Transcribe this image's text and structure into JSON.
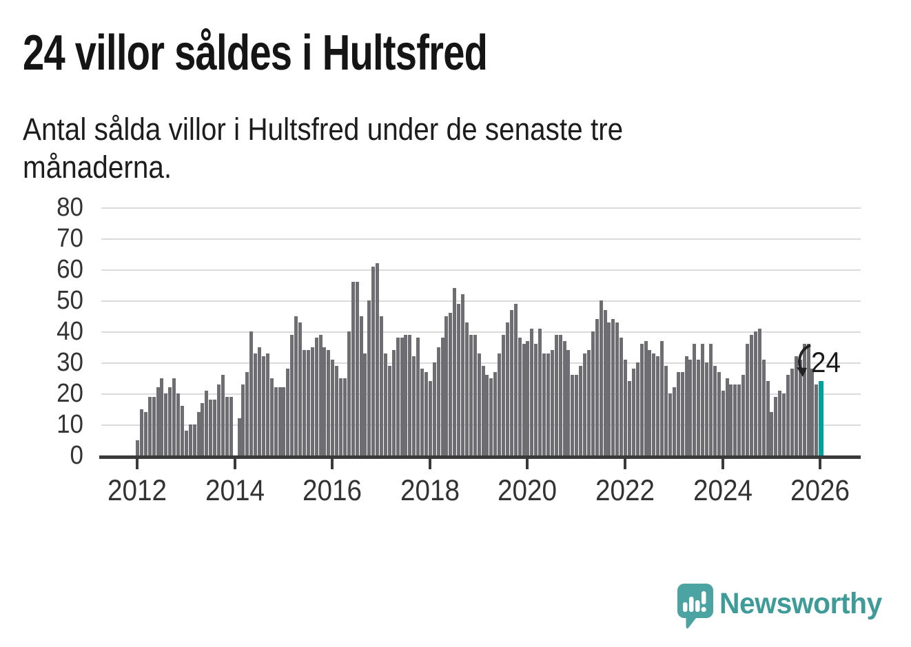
{
  "header": {
    "title": "24 villor såldes i Hultsfred",
    "subtitle_line1": "Antal sålda villor i Hultsfred under de senaste tre",
    "subtitle_line2": "månaderna."
  },
  "annotation": {
    "value_label": "24"
  },
  "footer": {
    "brand": "Newsworthy",
    "logo_icon": "newsworthy-speech-bubble-bar-chart-icon"
  },
  "colors": {
    "bar": "#6e6e72",
    "highlight": "#00a19b",
    "grid": "#dbdbdb",
    "axis": "#3a3a3a",
    "label": "#333333",
    "title": "#151515",
    "brand": "#3f9b98",
    "brand_bubble": "#4ba4a1"
  },
  "chart_data": {
    "type": "bar",
    "title": "24 villor såldes i Hultsfred",
    "subtitle": "Antal sålda villor i Hultsfred under de senaste tre månaderna.",
    "xlabel": "",
    "ylabel": "",
    "x_start": "2012-01",
    "x_end": "2026-01",
    "frequency": "monthly",
    "grid": true,
    "ylim": [
      0,
      80
    ],
    "yticks": [
      0,
      10,
      20,
      30,
      40,
      50,
      60,
      70,
      80
    ],
    "xticks": [
      "2012",
      "2014",
      "2016",
      "2018",
      "2020",
      "2022",
      "2024",
      "2026"
    ],
    "highlight_index": 168,
    "highlight_value": 24,
    "values": [
      5,
      15,
      14,
      19,
      19,
      22,
      25,
      20,
      22,
      25,
      20,
      16,
      8,
      10,
      10,
      14,
      17,
      21,
      18,
      18,
      23,
      26,
      19,
      19,
      0,
      12,
      23,
      27,
      40,
      33,
      35,
      32,
      33,
      25,
      22,
      22,
      22,
      28,
      39,
      45,
      43,
      34,
      34,
      35,
      38,
      39,
      35,
      34,
      31,
      29,
      25,
      25,
      40,
      56,
      56,
      45,
      33,
      50,
      61,
      62,
      45,
      33,
      29,
      34,
      38,
      38,
      39,
      39,
      32,
      38,
      28,
      27,
      24,
      30,
      35,
      38,
      45,
      46,
      54,
      49,
      52,
      43,
      39,
      39,
      33,
      29,
      26,
      25,
      27,
      33,
      39,
      43,
      47,
      49,
      38,
      36,
      37,
      41,
      36,
      41,
      33,
      33,
      34,
      39,
      39,
      37,
      34,
      26,
      26,
      29,
      33,
      34,
      40,
      44,
      50,
      47,
      43,
      44,
      43,
      38,
      31,
      24,
      28,
      30,
      36,
      37,
      34,
      33,
      32,
      37,
      29,
      20,
      22,
      27,
      27,
      32,
      31,
      36,
      31,
      36,
      30,
      36,
      29,
      27,
      21,
      25,
      23,
      23,
      23,
      26,
      36,
      39,
      40,
      41,
      31,
      24,
      14,
      19,
      21,
      20,
      26,
      28,
      32,
      31,
      36,
      36,
      28,
      23,
      24
    ]
  }
}
